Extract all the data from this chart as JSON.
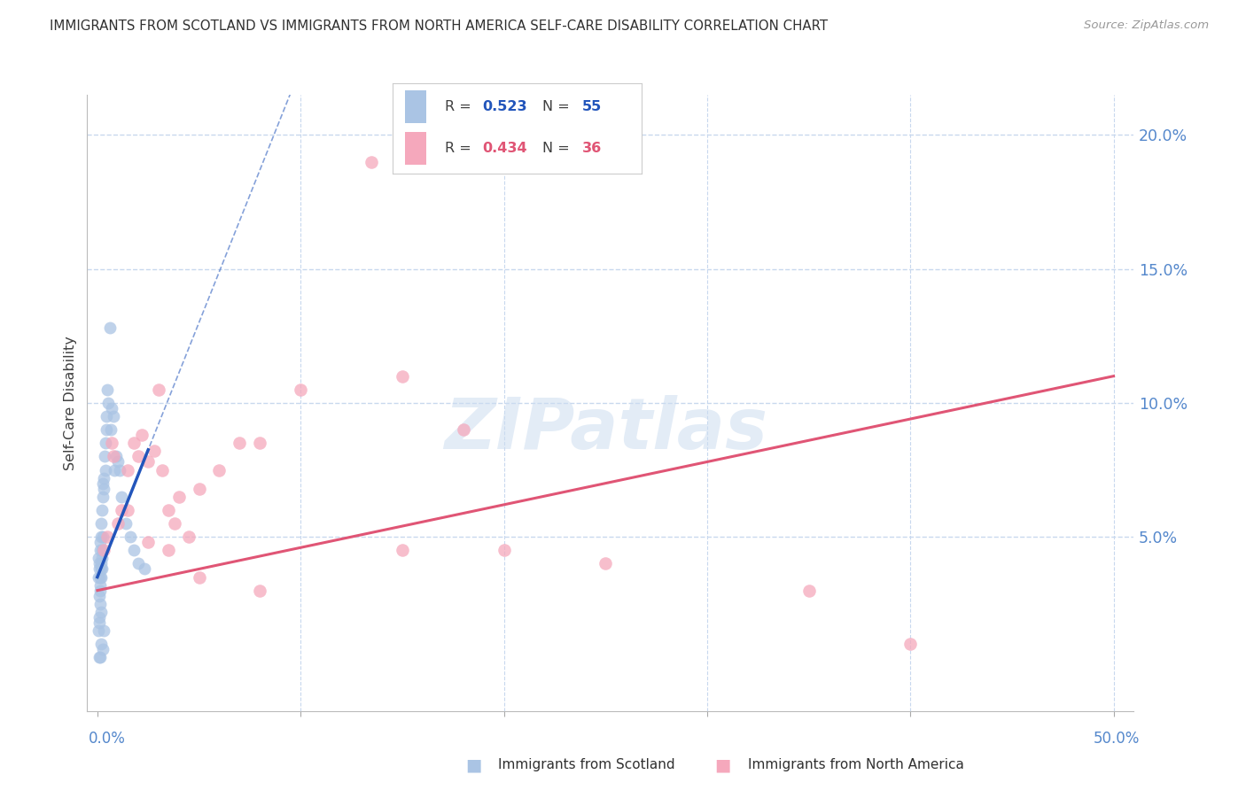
{
  "title": "IMMIGRANTS FROM SCOTLAND VS IMMIGRANTS FROM NORTH AMERICA SELF-CARE DISABILITY CORRELATION CHART",
  "source": "Source: ZipAtlas.com",
  "ylabel": "Self-Care Disability",
  "r_scotland": 0.523,
  "n_scotland": 55,
  "r_north_america": 0.434,
  "n_north_america": 36,
  "watermark": "ZIPatlas",
  "scotland_color": "#aac4e4",
  "north_america_color": "#f5a8bc",
  "scotland_line_color": "#2255bb",
  "north_america_line_color": "#e05575",
  "background_color": "#ffffff",
  "grid_color": "#c8d8ee",
  "title_color": "#303030",
  "axis_label_color": "#5588cc",
  "xmin": 0.0,
  "xmax": 50.0,
  "ymin": 0.0,
  "ymax": 20.0,
  "scotland_x": [
    0.05,
    0.06,
    0.07,
    0.08,
    0.09,
    0.1,
    0.1,
    0.11,
    0.12,
    0.12,
    0.13,
    0.14,
    0.15,
    0.15,
    0.16,
    0.17,
    0.18,
    0.19,
    0.2,
    0.2,
    0.21,
    0.22,
    0.23,
    0.24,
    0.25,
    0.26,
    0.28,
    0.3,
    0.32,
    0.35,
    0.38,
    0.4,
    0.43,
    0.46,
    0.5,
    0.55,
    0.6,
    0.65,
    0.7,
    0.8,
    0.85,
    0.9,
    1.0,
    1.1,
    1.2,
    1.4,
    1.6,
    1.8,
    2.0,
    2.3,
    0.1,
    0.15,
    0.2,
    0.25,
    0.3
  ],
  "scotland_y": [
    3.5,
    4.2,
    1.5,
    2.0,
    3.8,
    4.0,
    2.8,
    1.8,
    3.2,
    4.5,
    2.5,
    3.0,
    4.8,
    3.5,
    2.2,
    4.0,
    5.0,
    3.5,
    5.5,
    3.8,
    4.2,
    6.0,
    4.5,
    3.8,
    6.5,
    5.0,
    7.0,
    7.2,
    6.8,
    8.0,
    7.5,
    8.5,
    9.0,
    9.5,
    10.5,
    10.0,
    12.8,
    9.0,
    9.8,
    9.5,
    7.5,
    8.0,
    7.8,
    7.5,
    6.5,
    5.5,
    5.0,
    4.5,
    4.0,
    3.8,
    0.5,
    0.5,
    1.0,
    0.8,
    1.5
  ],
  "north_america_x": [
    0.3,
    0.5,
    0.7,
    0.8,
    1.0,
    1.2,
    1.5,
    1.8,
    2.0,
    2.2,
    2.5,
    2.8,
    3.0,
    3.2,
    3.5,
    3.8,
    4.0,
    4.5,
    5.0,
    6.0,
    7.0,
    8.0,
    10.0,
    13.5,
    15.0,
    18.0,
    20.0,
    25.0,
    35.0,
    40.0,
    1.5,
    2.5,
    3.5,
    5.0,
    8.0,
    15.0
  ],
  "north_america_y": [
    4.5,
    5.0,
    8.5,
    8.0,
    5.5,
    6.0,
    7.5,
    8.5,
    8.0,
    8.8,
    7.8,
    8.2,
    10.5,
    7.5,
    6.0,
    5.5,
    6.5,
    5.0,
    6.8,
    7.5,
    8.5,
    8.5,
    10.5,
    19.0,
    11.0,
    9.0,
    4.5,
    4.0,
    3.0,
    1.0,
    6.0,
    4.8,
    4.5,
    3.5,
    3.0,
    4.5
  ]
}
